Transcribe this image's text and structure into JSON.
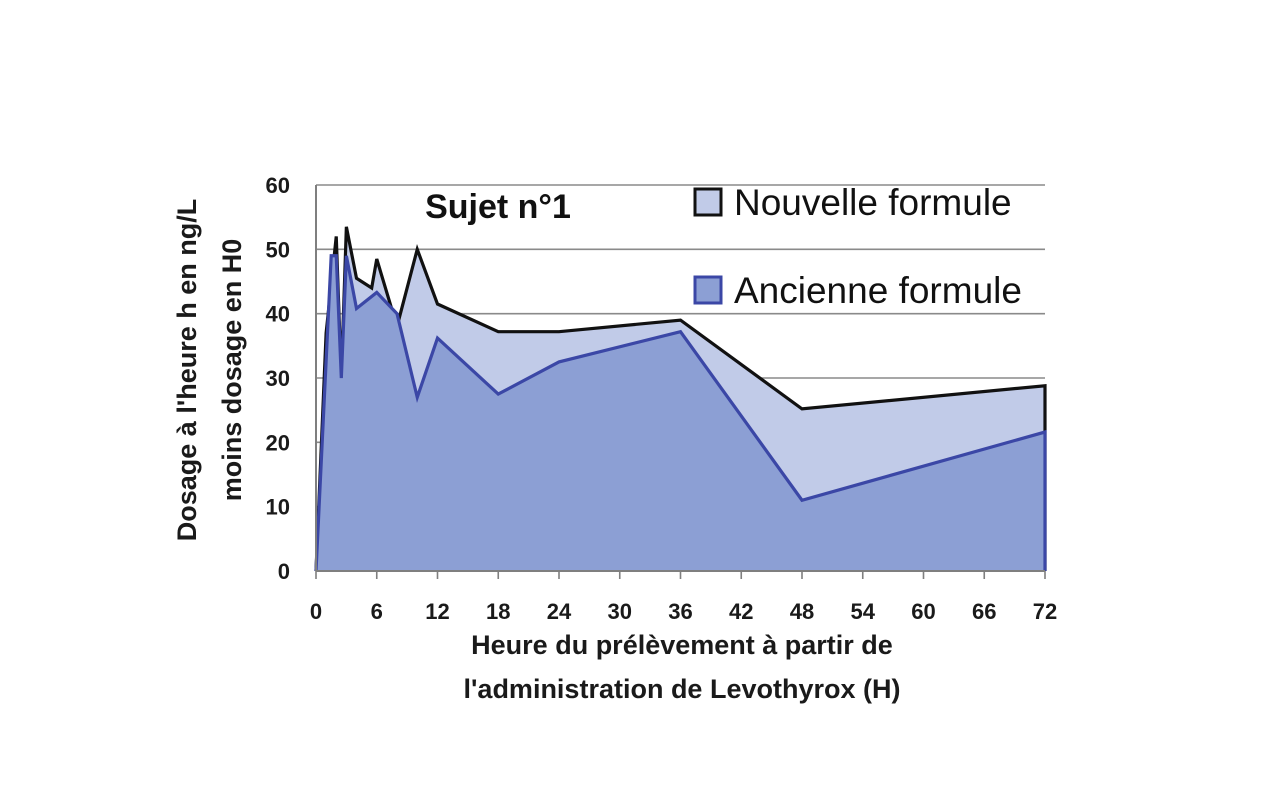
{
  "chart_data": {
    "type": "area",
    "title": "Sujet n°1",
    "xlabel_lines": [
      "Heure du prélèvement à partir de",
      "l'administration de Levothyrox (H)"
    ],
    "ylabel_lines": [
      "Dosage à l'heure h en ng/L",
      "moins dosage en H0"
    ],
    "xlim": [
      0,
      72
    ],
    "ylim": [
      0,
      60
    ],
    "x_ticks": [
      "0",
      "6",
      "12",
      "18",
      "24",
      "30",
      "36",
      "42",
      "48",
      "54",
      "60",
      "66",
      "72"
    ],
    "y_ticks": [
      "0",
      "10",
      "20",
      "30",
      "40",
      "50",
      "60"
    ],
    "grid": true,
    "legend_position": "top-right",
    "series": [
      {
        "name": "Nouvelle formule",
        "fill": "#c1cbe8",
        "stroke": "#111111",
        "points": [
          [
            0,
            0
          ],
          [
            1,
            37
          ],
          [
            2,
            52
          ],
          [
            2.5,
            30
          ],
          [
            3,
            53.5
          ],
          [
            4,
            45.5
          ],
          [
            5.5,
            44
          ],
          [
            6,
            48.5
          ],
          [
            8,
            38
          ],
          [
            10,
            50
          ],
          [
            12,
            41.5
          ],
          [
            18,
            37.2
          ],
          [
            24,
            37.2
          ],
          [
            36,
            39
          ],
          [
            48,
            25.2
          ],
          [
            72,
            28.8
          ]
        ]
      },
      {
        "name": "Ancienne formule",
        "fill": "#8c9fd4",
        "stroke": "#3b47a6",
        "points": [
          [
            0,
            0
          ],
          [
            1.5,
            49
          ],
          [
            2,
            49
          ],
          [
            2.5,
            30
          ],
          [
            3,
            49
          ],
          [
            4,
            40.8
          ],
          [
            6,
            43.3
          ],
          [
            8,
            40
          ],
          [
            10,
            27
          ],
          [
            12,
            36.2
          ],
          [
            18,
            27.5
          ],
          [
            24,
            32.5
          ],
          [
            36,
            37.2
          ],
          [
            48,
            11
          ],
          [
            72,
            21.6
          ]
        ]
      }
    ]
  }
}
